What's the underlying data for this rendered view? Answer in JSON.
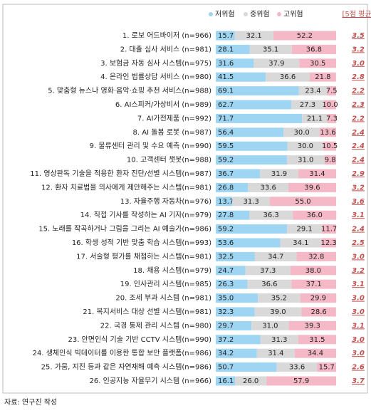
{
  "chart_data": {
    "type": "stacked-bar",
    "categories": [
      "1. 로보 어드바이저 (n=966)",
      "2. 대출 심사 서비스 (n=981)",
      "3. 보험금 자동 심사 시스템(n=975)",
      "4. 온라인 법률상담 서비스 (n=980)",
      "5. 맞춤형 뉴스나 영화·음악·쇼핑 추천 서비스(n=988)",
      "6. AI스피커/가상비서 (n=989)",
      "7. AI가전제품 (n=992)",
      "8. AI 돌봄 로봇 (n=987)",
      "9. 물류센터 관리 및 수요 예측 (n=990)",
      "10. 고객센터 챗봇(n=988)",
      "11. 영상판독 기술을 적용한 환자 진단/선별 시스템(n=987)",
      "12. 환자 치료법을 의사에게 제안해주는 시스템(n=981)",
      "13. 자율주행 자동차(n=976)",
      "14. 직접 기사를 작성하는 AI 기자(n=979)",
      "15. 노래를 작곡하거나 그림을 그리는 AI 예술가(n=986)",
      "16. 학생 성적 기반 맞춤 학습 시스템(n=993)",
      "17. 서술형 평가를 채점하는 시스템(n=981)",
      "18. 채용 시스템(n=979)",
      "19. 인사관리 시스템(n=985)",
      "20. 조세 부과 시스템 (n=981)",
      "21. 복지서비스 대상 선별 시스템(n=981)",
      "22. 국경 통제 관리 시스템 (n=980)",
      "23. 안면인식 기술 기반 CCTV 시스템(n=990)",
      "24. 생체인식 빅데이터를 이용한 통합 보안 플랫폼(n=986)",
      "25. 가뭄, 지진 등과 같은 자연재해 예측 시스템(n=986)",
      "26. 인공지능 자율무기 시스템 (n=966)"
    ],
    "series": [
      {
        "name": "저위험",
        "color": "#9dd5f3",
        "values": [
          15.7,
          28.1,
          31.6,
          41.5,
          69.1,
          62.7,
          71.7,
          56.4,
          59.5,
          59.2,
          36.7,
          26.8,
          13.7,
          27.8,
          59.2,
          53.6,
          32.5,
          24.7,
          26.3,
          35.0,
          32.3,
          29.7,
          37.2,
          34.2,
          50.7,
          16.1
        ],
        "value_labels": [
          "15.7",
          "28.1",
          "31.6",
          "41.5",
          "69.1",
          "62.7",
          "71.7",
          "56.4",
          "59.5",
          "59.2",
          "36.7",
          "26.8",
          "13.7",
          "27.8",
          "59.2",
          "53.6",
          "32.5",
          "24.7",
          "26.3",
          "35.0",
          "32.3",
          "29.7",
          "37.2",
          "34.2",
          "50.7",
          "16.1"
        ]
      },
      {
        "name": "중위험",
        "color": "#d9d9d9",
        "values": [
          32.1,
          35.1,
          37.9,
          36.6,
          23.4,
          27.3,
          21.1,
          30.0,
          30.0,
          31.0,
          31.9,
          33.6,
          31.3,
          36.3,
          29.1,
          34.1,
          34.7,
          37.3,
          36.6,
          35.2,
          39.0,
          31.0,
          31.3,
          31.4,
          33.6,
          26.0
        ],
        "value_labels": [
          "32.1",
          "35.1",
          "37.9",
          "36.6",
          "23.4",
          "27.3",
          "21.1",
          "30.0",
          "30.0",
          "31.0",
          "31.9",
          "33.6",
          "31.3",
          "36.3",
          "29.1",
          "34.1",
          "34.7",
          "37.3",
          "36.6",
          "35.2",
          "39.0",
          "31.0",
          "31.3",
          "31.4",
          "33.6",
          "26.0"
        ]
      },
      {
        "name": "고위험",
        "color": "#f4b8c6",
        "values": [
          52.2,
          36.8,
          30.5,
          21.8,
          7.5,
          10.0,
          7.3,
          13.6,
          10.5,
          9.8,
          31.4,
          39.6,
          55.0,
          36.0,
          11.7,
          12.3,
          32.8,
          38.0,
          37.1,
          29.9,
          28.6,
          39.3,
          31.5,
          34.4,
          15.7,
          57.9
        ],
        "value_labels": [
          "52.2",
          "36.8",
          "30.5",
          "21.8",
          "7.5",
          "10.0",
          "7.3",
          "13.6",
          "10.5",
          "9.8",
          "31.4",
          "39.6",
          "55.0",
          "36.0",
          "11.7",
          "12.3",
          "32.8",
          "38.0",
          "37.1",
          "29.9",
          "28.6",
          "39.3",
          "31.5",
          "34.4",
          "15.7",
          "57.9"
        ]
      }
    ],
    "average_label": "[5점 평균]",
    "averages": [
      "3.5",
      "3.2",
      "3.0",
      "2.8",
      "2.2",
      "2.3",
      "2.2",
      "2.4",
      "2.4",
      "2.4",
      "2.9",
      "3.2",
      "3.6",
      "3.1",
      "2.4",
      "2.5",
      "3.0",
      "3.2",
      "3.1",
      "3.0",
      "3.0",
      "3.1",
      "3.0",
      "3.0",
      "2.6",
      "3.7"
    ],
    "average_color": "#c0504d",
    "xlim": [
      0,
      100
    ],
    "source": "자료: 연구진 작성"
  }
}
